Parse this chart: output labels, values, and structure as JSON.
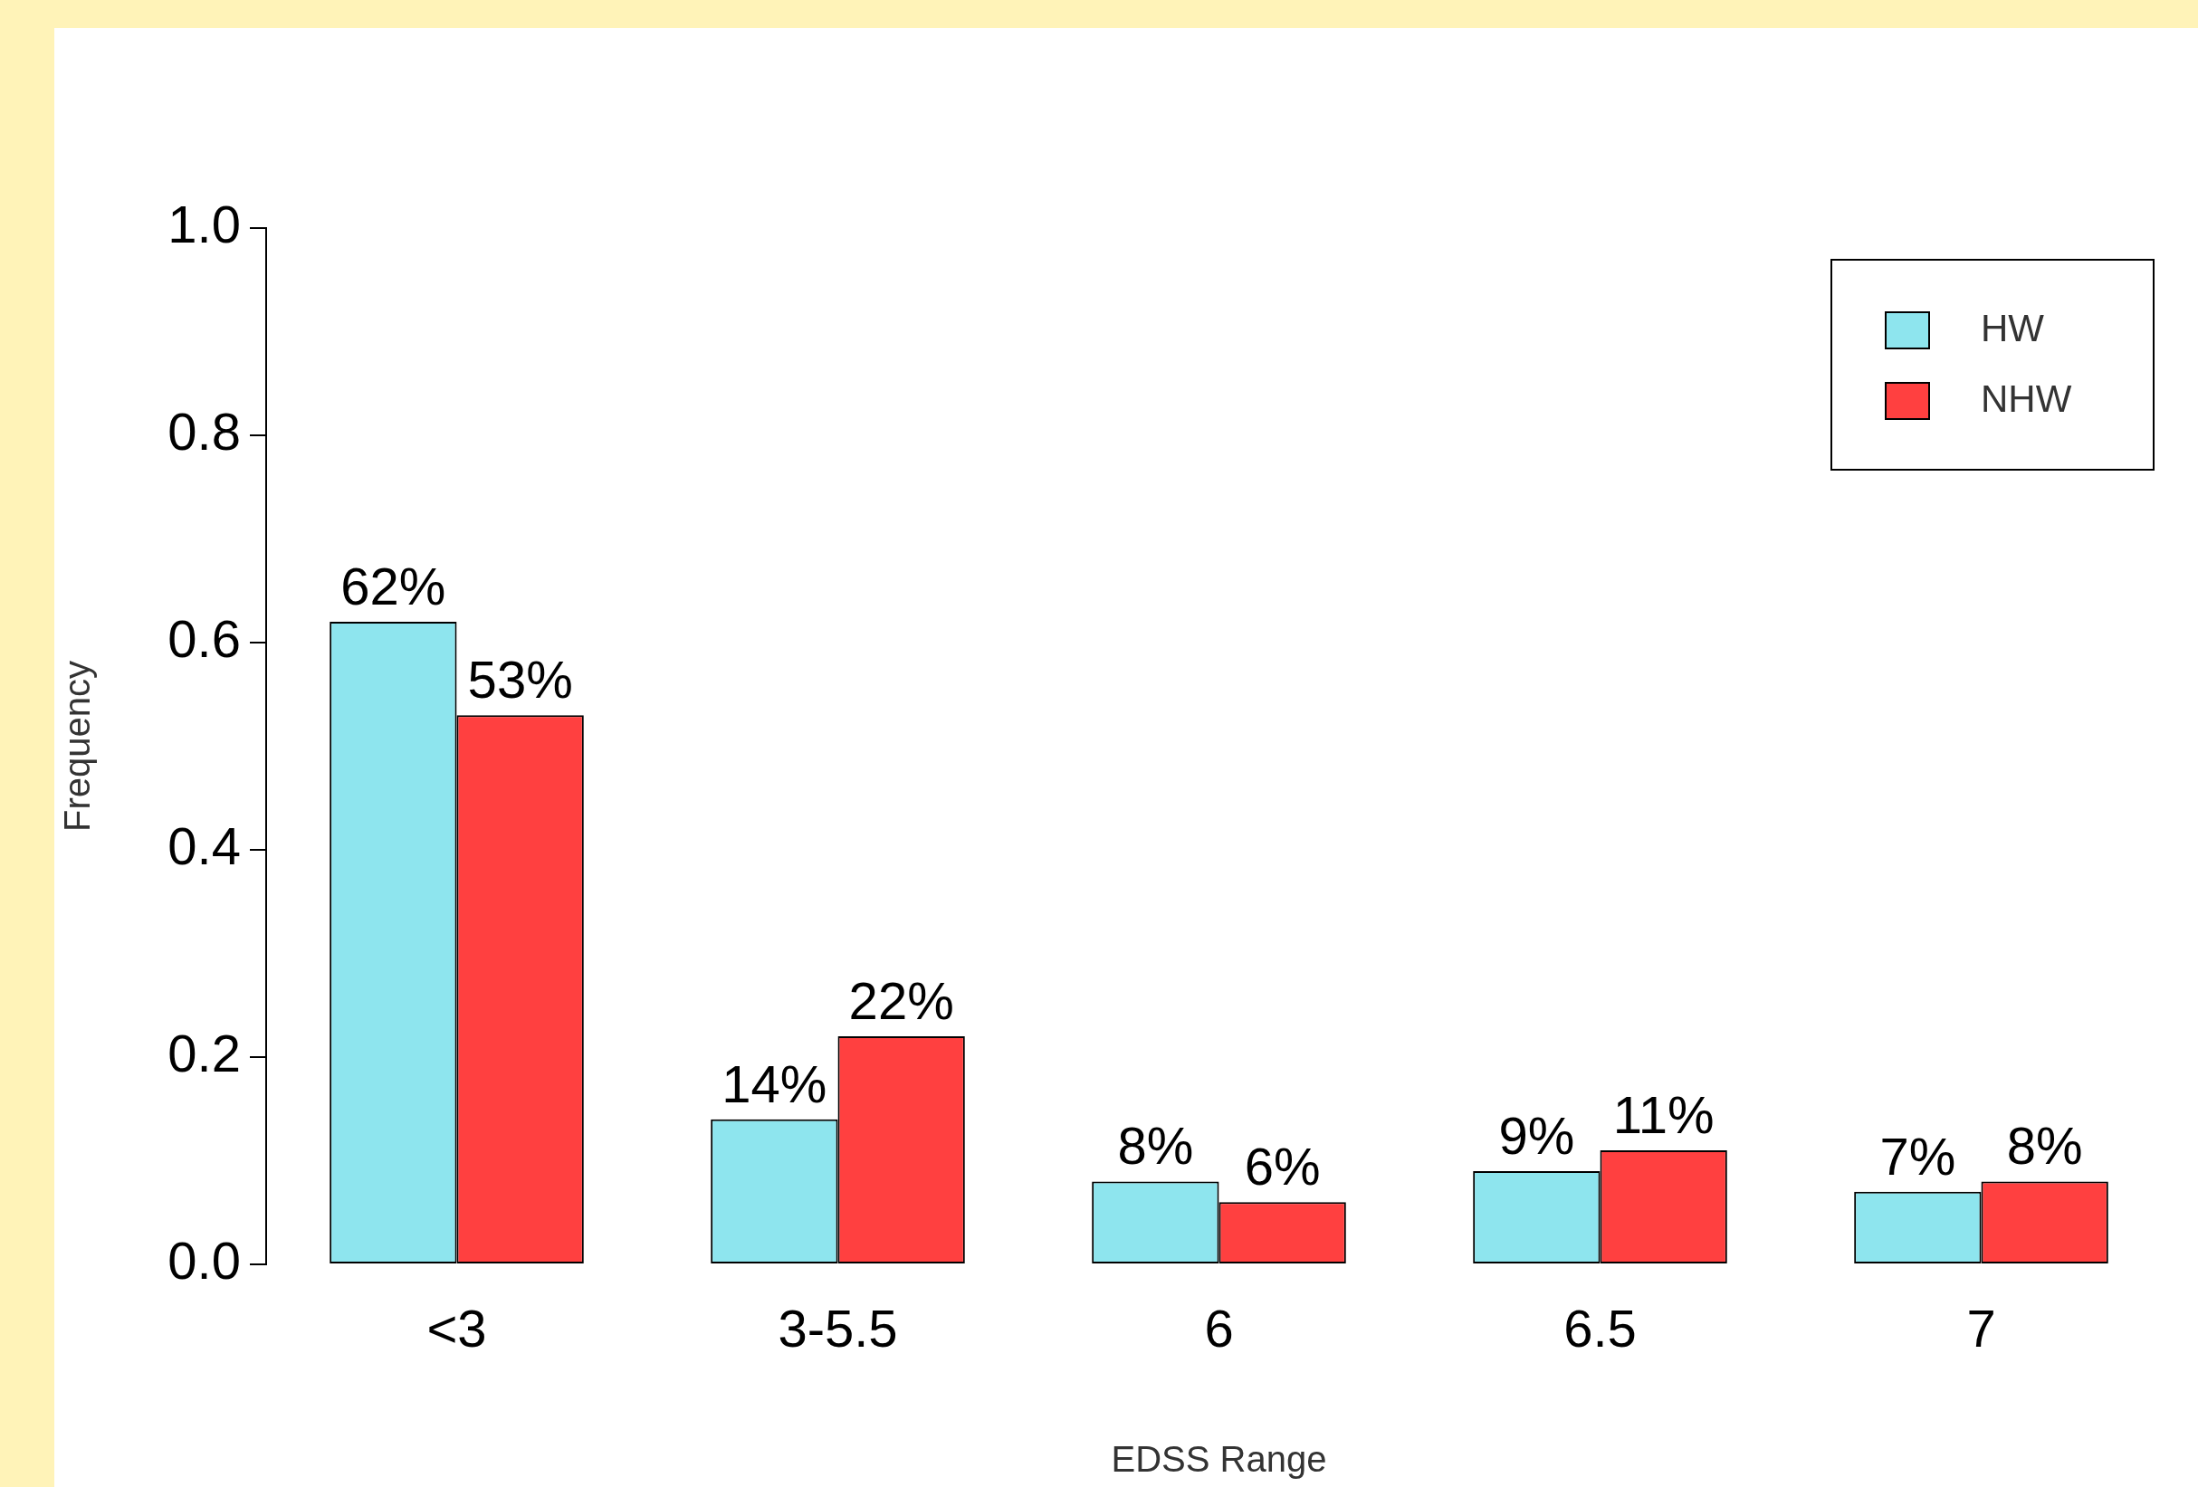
{
  "chart_data": {
    "type": "bar",
    "xlabel": "EDSS Range",
    "ylabel": "Frequency",
    "categories": [
      "<3",
      "3-5.5",
      "6",
      "6.5",
      "7"
    ],
    "series": [
      {
        "name": "HW",
        "color": "#8ee5ee",
        "values": [
          0.62,
          0.14,
          0.08,
          0.09,
          0.07
        ],
        "value_labels": [
          "62%",
          "14%",
          "8%",
          "9%",
          "7%"
        ]
      },
      {
        "name": "NHW",
        "color": "#ff4040",
        "values": [
          0.53,
          0.22,
          0.06,
          0.11,
          0.08
        ],
        "value_labels": [
          "53%",
          "22%",
          "6%",
          "11%",
          "8%"
        ]
      }
    ],
    "ylim": [
      0,
      1
    ],
    "yticks": [
      {
        "value": 0,
        "label": "0.0"
      },
      {
        "value": 0.2,
        "label": "0.2"
      },
      {
        "value": 0.4,
        "label": "0.4"
      },
      {
        "value": 0.6,
        "label": "0.6"
      },
      {
        "value": 0.8,
        "label": "0.8"
      },
      {
        "value": 1,
        "label": "1.0"
      }
    ],
    "grid": false,
    "legend": "top right"
  }
}
